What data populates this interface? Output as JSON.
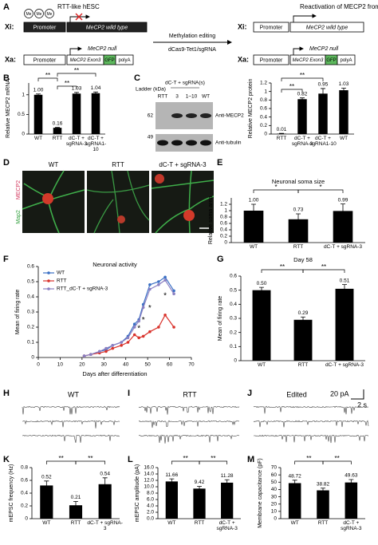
{
  "panel_labels": [
    "A",
    "B",
    "C",
    "D",
    "E",
    "F",
    "G",
    "H",
    "I",
    "J",
    "K",
    "L",
    "M"
  ],
  "panel_a": {
    "left_title": "RTT-like hESC",
    "right_title": "Reactivation of MECP2 from Xi",
    "xi": "Xi:",
    "xa": "Xa:",
    "promoter": "Promoter",
    "wild_type": "MeCP2 wild type",
    "null": "MeCP2 null",
    "exon3": "MeCP2 Exon3",
    "gfp": "GFP",
    "polya": "polyA",
    "methyl": "Me",
    "arrow_top": "Methylation editing",
    "arrow_bottom": "dCas9-Tet1/sgRNA"
  },
  "panel_c_blot": {
    "header": "dC-T + sgRNA(s)",
    "lanes": [
      "RTT",
      "3",
      "1–10",
      "WT"
    ],
    "ladder": "Ladder (kDa)",
    "markers": [
      "62",
      "49"
    ],
    "bands": [
      "Anti-MECP2",
      "Anti-tubulin"
    ]
  },
  "panel_d": {
    "columns": [
      "WT",
      "RTT",
      "dC-T + sgRNA-3"
    ],
    "stain_green": "Map2",
    "stain_red": "MECP2"
  },
  "panel_traces": {
    "titles": [
      "WT",
      "RTT",
      "Edited"
    ],
    "scale_y": "20 pA",
    "scale_x": "2 s"
  },
  "chart_data": [
    {
      "type": "bar",
      "y_label": "Relative MECP2 mRNA",
      "categories": [
        "WT",
        "RTT",
        "dC-T + sgRNA-3",
        "dC-T + sgRNA1-10"
      ],
      "values": [
        1,
        0.16,
        1.03,
        1.04
      ],
      "value_labels": [
        "1.00",
        "0.16",
        "1.03",
        "1.04"
      ],
      "errors": [
        0.02,
        0.01,
        0.03,
        0.03
      ],
      "color": "#000000",
      "ylim": [
        0,
        1.3
      ],
      "yticks": [
        0,
        0.5,
        1
      ],
      "annotations": [
        "**",
        "**",
        "**"
      ]
    },
    {
      "type": "bar",
      "y_label": "Relative MECP2 protein",
      "categories": [
        "RTT",
        "dC-T + sgRNA-3",
        "dC-T + sgRNA1-10",
        "WT"
      ],
      "values": [
        0.01,
        0.82,
        0.95,
        1.03
      ],
      "errors": [
        0.005,
        0.03,
        0.12,
        0.05
      ],
      "color": "#000000",
      "ylim": [
        0,
        1.2
      ],
      "yticks": [
        0,
        0.2,
        0.4,
        0.6,
        0.8,
        1,
        1.2
      ],
      "annotations": [
        "**",
        "**"
      ]
    },
    {
      "type": "bar",
      "title": "Neuronal soma size",
      "y_label": "Relative soma area",
      "categories": [
        "WT",
        "RTT",
        "dC-T + sgRNA-3"
      ],
      "values": [
        1,
        0.73,
        0.99
      ],
      "value_labels": [
        "1.00",
        "0.73",
        "0.99"
      ],
      "errors": [
        0.2,
        0.17,
        0.22
      ],
      "color": "#000000",
      "ylim": [
        0,
        1.4
      ],
      "yticks": [
        0,
        0.2,
        0.4,
        0.6,
        0.8,
        1,
        1.2
      ],
      "annotations": [
        "*",
        "*"
      ]
    },
    {
      "type": "line",
      "title": "Neuronal activity",
      "x_label": "Days after differentiation",
      "y_label": "Mean of firing rate",
      "x": [
        21,
        24,
        28,
        31,
        34,
        38,
        41,
        44,
        46,
        48,
        51,
        55,
        58,
        62
      ],
      "series": [
        {
          "name": "WT",
          "color": "#3a6fc4",
          "values": [
            0.01,
            0.02,
            0.04,
            0.05,
            0.08,
            0.1,
            0.14,
            0.22,
            0.25,
            0.35,
            0.48,
            0.5,
            0.53,
            0.44
          ]
        },
        {
          "name": "RTT",
          "color": "#d9322b",
          "values": [
            0.01,
            0.02,
            0.03,
            0.04,
            0.06,
            0.08,
            0.1,
            0.15,
            0.13,
            0.14,
            0.17,
            0.2,
            0.28,
            0.2
          ]
        },
        {
          "name": "RTT_dC-T + sgRNA-3",
          "color": "#8a7fc2",
          "values": [
            0.01,
            0.02,
            0.04,
            0.06,
            0.08,
            0.1,
            0.13,
            0.2,
            0.24,
            0.33,
            0.45,
            0.48,
            0.51,
            0.42
          ]
        }
      ],
      "xlim": [
        0,
        70
      ],
      "xticks": [
        0,
        10,
        20,
        30,
        40,
        50,
        60,
        70
      ],
      "ylim": [
        0,
        0.6
      ],
      "yticks": [
        0,
        0.1,
        0.2,
        0.3,
        0.4,
        0.5,
        0.6
      ],
      "annotations": [
        "*",
        "*",
        "*",
        "*"
      ]
    },
    {
      "type": "bar",
      "title": "Day 58",
      "y_label": "Mean of firing rate",
      "categories": [
        "WT",
        "RTT",
        "dC-T + sgRNA-3"
      ],
      "values": [
        0.5,
        0.29,
        0.51
      ],
      "value_labels": [
        "0.50",
        "0.29",
        "0.51"
      ],
      "errors": [
        0.02,
        0.02,
        0.03
      ],
      "color": "#000000",
      "ylim": [
        0,
        0.6
      ],
      "yticks": [
        0,
        0.1,
        0.2,
        0.3,
        0.4,
        0.5,
        0.6
      ],
      "annotations": [
        "**",
        "**"
      ]
    },
    {
      "type": "bar",
      "y_label": "mEPSC frequency (Hz)",
      "categories": [
        "WT",
        "RTT",
        "dC-T + sgRNA-3"
      ],
      "values": [
        0.52,
        0.21,
        0.54
      ],
      "errors": [
        0.07,
        0.06,
        0.1
      ],
      "color": "#000000",
      "ylim": [
        0,
        0.8
      ],
      "yticks": [
        0,
        0.2,
        0.4,
        0.6,
        0.8
      ],
      "annotations": [
        "**",
        "**"
      ]
    },
    {
      "type": "bar",
      "y_label": "mEPSC amplitude (pA)",
      "categories": [
        "WT",
        "RTT",
        "dC-T + sgRNA-3"
      ],
      "values": [
        11.66,
        9.42,
        11.28
      ],
      "errors": [
        0.8,
        0.7,
        0.9
      ],
      "color": "#000000",
      "ylim": [
        0,
        16
      ],
      "yticks": [
        {
          "value": 0,
          "label": "0.0"
        },
        {
          "value": 2,
          "label": "2.0"
        },
        {
          "value": 4,
          "label": "4.0"
        },
        {
          "value": 6,
          "label": "6.0"
        },
        {
          "value": 8,
          "label": "8.0"
        },
        {
          "value": 10,
          "label": "10.0"
        },
        {
          "value": 12,
          "label": "12.0"
        },
        {
          "value": 14,
          "label": "14.0"
        },
        {
          "value": 16,
          "label": "16.0"
        }
      ],
      "annotations": [
        "**",
        "**"
      ]
    },
    {
      "type": "bar",
      "y_label": "Membrane capacitance (pF)",
      "categories": [
        "WT",
        "RTT",
        "dC-T + sgRNA-3"
      ],
      "values": [
        48.72,
        38.82,
        49.63
      ],
      "errors": [
        4,
        3,
        4
      ],
      "color": "#000000",
      "ylim": [
        0,
        70
      ],
      "yticks": [
        0,
        10,
        20,
        30,
        40,
        50,
        60,
        70
      ],
      "annotations": [
        "**",
        "**"
      ]
    }
  ]
}
